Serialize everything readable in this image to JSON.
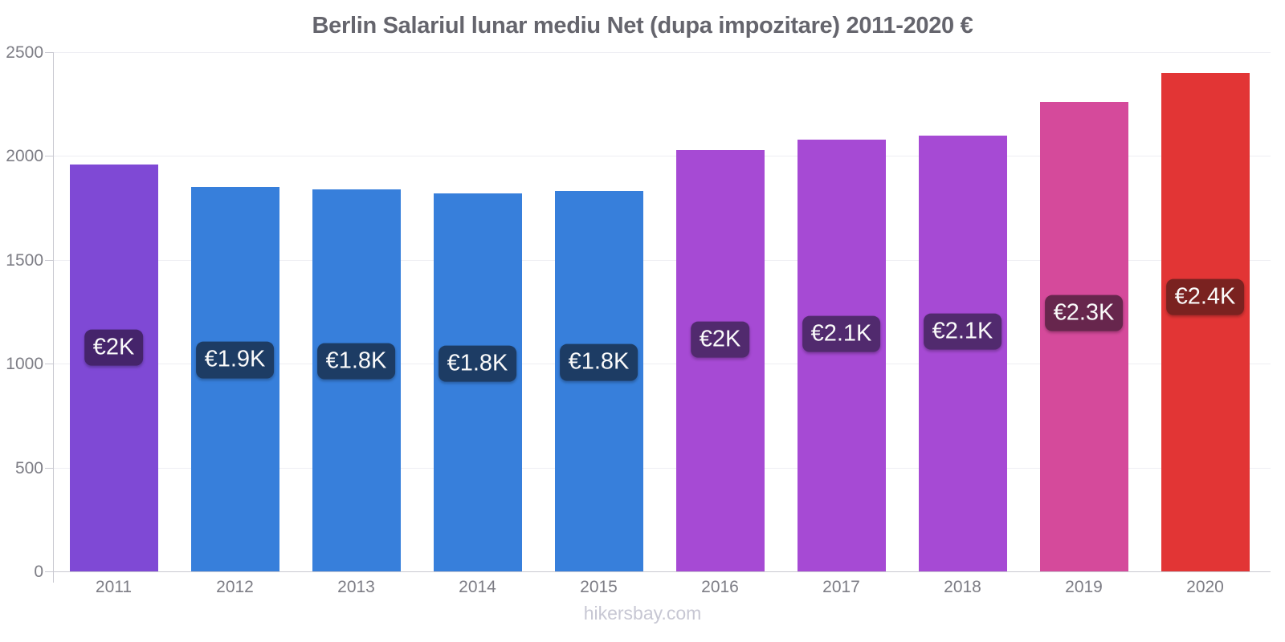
{
  "title": "Berlin Salariul lunar mediu Net (dupa impozitare) 2011-2020 €",
  "footer": "hikersbay.com",
  "chart_data": {
    "type": "bar",
    "title": "Berlin Salariul lunar mediu Net (dupa impozitare) 2011-2020 €",
    "xlabel": "",
    "ylabel": "",
    "categories": [
      "2011",
      "2012",
      "2013",
      "2014",
      "2015",
      "2016",
      "2017",
      "2018",
      "2019",
      "2020"
    ],
    "values": [
      1960,
      1850,
      1840,
      1820,
      1830,
      2030,
      2080,
      2100,
      2260,
      2400
    ],
    "value_labels": [
      "€2K",
      "€1.9K",
      "€1.8K",
      "€1.8K",
      "€1.8K",
      "€2K",
      "€2.1K",
      "€2.1K",
      "€2.3K",
      "€2.4K"
    ],
    "bar_colors": [
      "#7f49d5",
      "#377fdb",
      "#377fdb",
      "#377fdb",
      "#377fdb",
      "#a64ad4",
      "#a64ad4",
      "#a64ad4",
      "#d54a9b",
      "#e23535"
    ],
    "badge_colors": [
      "#45246b",
      "#1d3c64",
      "#1d3c64",
      "#1d3c64",
      "#1d3c64",
      "#512a6e",
      "#512a6e",
      "#512a6e",
      "#67264d",
      "#7a2220"
    ],
    "ylim": [
      0,
      2500
    ],
    "yticks": [
      0,
      500,
      1000,
      1500,
      2000,
      2500
    ],
    "grid": true,
    "legend": "none",
    "currency": "€"
  }
}
